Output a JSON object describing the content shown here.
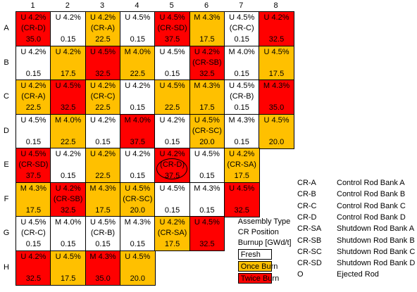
{
  "columns": [
    "1",
    "2",
    "3",
    "4",
    "5",
    "6",
    "7",
    "8"
  ],
  "rows": [
    "A",
    "B",
    "C",
    "D",
    "E",
    "F",
    "G",
    "H"
  ],
  "cells": {
    "A": [
      {
        "type": "twice",
        "t1": "U 4.2%",
        "t2": "(CR-D)",
        "t3": "35.0"
      },
      {
        "type": "fresh",
        "t1": "U 4.2%",
        "t2": "",
        "t3": "0.15"
      },
      {
        "type": "once",
        "t1": "U 4.2%",
        "t2": "(CR-A)",
        "t3": "22.5"
      },
      {
        "type": "fresh",
        "t1": "U 4.5%",
        "t2": "",
        "t3": "0.15"
      },
      {
        "type": "twice",
        "t1": "U 4.5%",
        "t2": "(CR-SD)",
        "t3": "37.5"
      },
      {
        "type": "once",
        "t1": "M 4.3%",
        "t2": "",
        "t3": "17.5"
      },
      {
        "type": "fresh",
        "t1": "U 4.5%",
        "t2": "(CR-C)",
        "t3": "0.15"
      },
      {
        "type": "twice",
        "t1": "U 4.2%",
        "t2": "",
        "t3": "32.5"
      }
    ],
    "B": [
      {
        "type": "fresh",
        "t1": "U 4.2%",
        "t2": "",
        "t3": "0.15"
      },
      {
        "type": "once",
        "t1": "U 4.2%",
        "t2": "",
        "t3": "17.5"
      },
      {
        "type": "twice",
        "t1": "U 4.5%",
        "t2": "",
        "t3": "32.5"
      },
      {
        "type": "once",
        "t1": "M 4.0%",
        "t2": "",
        "t3": "22.5"
      },
      {
        "type": "fresh",
        "t1": "U 4.5%",
        "t2": "",
        "t3": "0.15"
      },
      {
        "type": "twice",
        "t1": "U 4.2%",
        "t2": "(CR-SB)",
        "t3": "32.5"
      },
      {
        "type": "fresh",
        "t1": "M 4.0%",
        "t2": "",
        "t3": "0.15"
      },
      {
        "type": "once",
        "t1": "U 4.5%",
        "t2": "",
        "t3": "17.5"
      }
    ],
    "C": [
      {
        "type": "once",
        "t1": "U 4.2%",
        "t2": "(CR-A)",
        "t3": "22.5"
      },
      {
        "type": "twice",
        "t1": "U 4.5%",
        "t2": "",
        "t3": "32.5"
      },
      {
        "type": "once",
        "t1": "U 4.2%",
        "t2": "(CR-C)",
        "t3": "22.5"
      },
      {
        "type": "fresh",
        "t1": "U 4.2%",
        "t2": "",
        "t3": "0.15"
      },
      {
        "type": "once",
        "t1": "U 4.5%",
        "t2": "",
        "t3": "22.5"
      },
      {
        "type": "once",
        "t1": "M 4.3%",
        "t2": "",
        "t3": "17.5"
      },
      {
        "type": "fresh",
        "t1": "U 4.5%",
        "t2": "(CR-B)",
        "t3": "0.15"
      },
      {
        "type": "twice",
        "t1": "M 4.3%",
        "t2": "",
        "t3": "35.0"
      }
    ],
    "D": [
      {
        "type": "fresh",
        "t1": "U 4.5%",
        "t2": "",
        "t3": "0.15"
      },
      {
        "type": "once",
        "t1": "M 4.0%",
        "t2": "",
        "t3": "22.5"
      },
      {
        "type": "fresh",
        "t1": "U 4.2%",
        "t2": "",
        "t3": "0.15"
      },
      {
        "type": "twice",
        "t1": "M 4.0%",
        "t2": "",
        "t3": "37.5"
      },
      {
        "type": "fresh",
        "t1": "U 4.2%",
        "t2": "",
        "t3": "0.15"
      },
      {
        "type": "once",
        "t1": "U 4.5%",
        "t2": "(CR-SC)",
        "t3": "20.0"
      },
      {
        "type": "fresh",
        "t1": "M 4.3%",
        "t2": "",
        "t3": "0.15"
      },
      {
        "type": "once",
        "t1": "U 4.5%",
        "t2": "",
        "t3": "20.0"
      }
    ],
    "E": [
      {
        "type": "twice",
        "t1": "U 4.5%",
        "t2": "(CR-SD)",
        "t3": "37.5"
      },
      {
        "type": "fresh",
        "t1": "U 4.2%",
        "t2": "",
        "t3": "0.15"
      },
      {
        "type": "once",
        "t1": "U 4.2%",
        "t2": "",
        "t3": "22.5"
      },
      {
        "type": "fresh",
        "t1": "U 4.2%",
        "t2": "",
        "t3": "0.15"
      },
      {
        "type": "twice",
        "t1": "U 4.2%",
        "t2": "(CR-D)",
        "t3": "37.5",
        "ring": true
      },
      {
        "type": "fresh",
        "t1": "U 4.5%",
        "t2": "",
        "t3": "0.15"
      },
      {
        "type": "once",
        "t1": "U 4.2%",
        "t2": "(CR-SA)",
        "t3": "17.5"
      }
    ],
    "F": [
      {
        "type": "once",
        "t1": "M 4.3%",
        "t2": "",
        "t3": "17.5"
      },
      {
        "type": "twice",
        "t1": "U 4.2%",
        "t2": "(CR-SB)",
        "t3": "32.5"
      },
      {
        "type": "once",
        "t1": "M 4.3%",
        "t2": "",
        "t3": "17.5"
      },
      {
        "type": "once",
        "t1": "U 4.5%",
        "t2": "(CR-SC)",
        "t3": "20.0"
      },
      {
        "type": "fresh",
        "t1": "U 4.5%",
        "t2": "",
        "t3": "0.15"
      },
      {
        "type": "fresh",
        "t1": "M 4.3%",
        "t2": "",
        "t3": "0.15"
      },
      {
        "type": "twice",
        "t1": "U 4.5%",
        "t2": "",
        "t3": "32.5"
      }
    ],
    "G": [
      {
        "type": "fresh",
        "t1": "U 4.5%",
        "t2": "(CR-C)",
        "t3": "0.15"
      },
      {
        "type": "fresh",
        "t1": "M 4.0%",
        "t2": "",
        "t3": "0.15"
      },
      {
        "type": "fresh",
        "t1": "U 4.5%",
        "t2": "(CR-B)",
        "t3": "0.15"
      },
      {
        "type": "fresh",
        "t1": "M 4.3%",
        "t2": "",
        "t3": "0.15"
      },
      {
        "type": "once",
        "t1": "U 4.2%",
        "t2": "(CR-SA)",
        "t3": "17.5"
      },
      {
        "type": "twice",
        "t1": "U 4.5%",
        "t2": "",
        "t3": "32.5"
      }
    ],
    "H": [
      {
        "type": "twice",
        "t1": "U 4.2%",
        "t2": "",
        "t3": "32.5"
      },
      {
        "type": "once",
        "t1": "U 4.5%",
        "t2": "",
        "t3": "17.5"
      },
      {
        "type": "twice",
        "t1": "M 4.3%",
        "t2": "",
        "t3": "35.0"
      },
      {
        "type": "once",
        "t1": "U 4.5%",
        "t2": "",
        "t3": "20.0"
      }
    ]
  },
  "cell_legend": {
    "line1": "Assembly Type",
    "line2": "CR Position",
    "line3": "Burnup [GWd/t]"
  },
  "burn_legend": [
    {
      "type": "fresh",
      "label": "Fresh"
    },
    {
      "type": "once",
      "label": "Once Burn"
    },
    {
      "type": "twice",
      "label": "Twice Burn"
    }
  ],
  "abbreviations": [
    {
      "code": "CR-A",
      "desc": "Control Rod Bank A"
    },
    {
      "code": "CR-B",
      "desc": "Control Rod Bank B"
    },
    {
      "code": "CR-C",
      "desc": "Control Rod Bank C"
    },
    {
      "code": "CR-D",
      "desc": "Control Rod Bank D"
    },
    {
      "code": "CR-SA",
      "desc": "Shutdown Rod Bank A"
    },
    {
      "code": "CR-SB",
      "desc": "Shutdown Rod Bank B"
    },
    {
      "code": "CR-SC",
      "desc": "Shutdown Rod Bank C"
    },
    {
      "code": "CR-SD",
      "desc": "Shutdown Rod Bank D"
    },
    {
      "code": "O",
      "desc": "Ejected Rod"
    }
  ],
  "colors": {
    "fresh": "#ffffff",
    "once": "#ffc000",
    "twice": "#ff0000"
  }
}
